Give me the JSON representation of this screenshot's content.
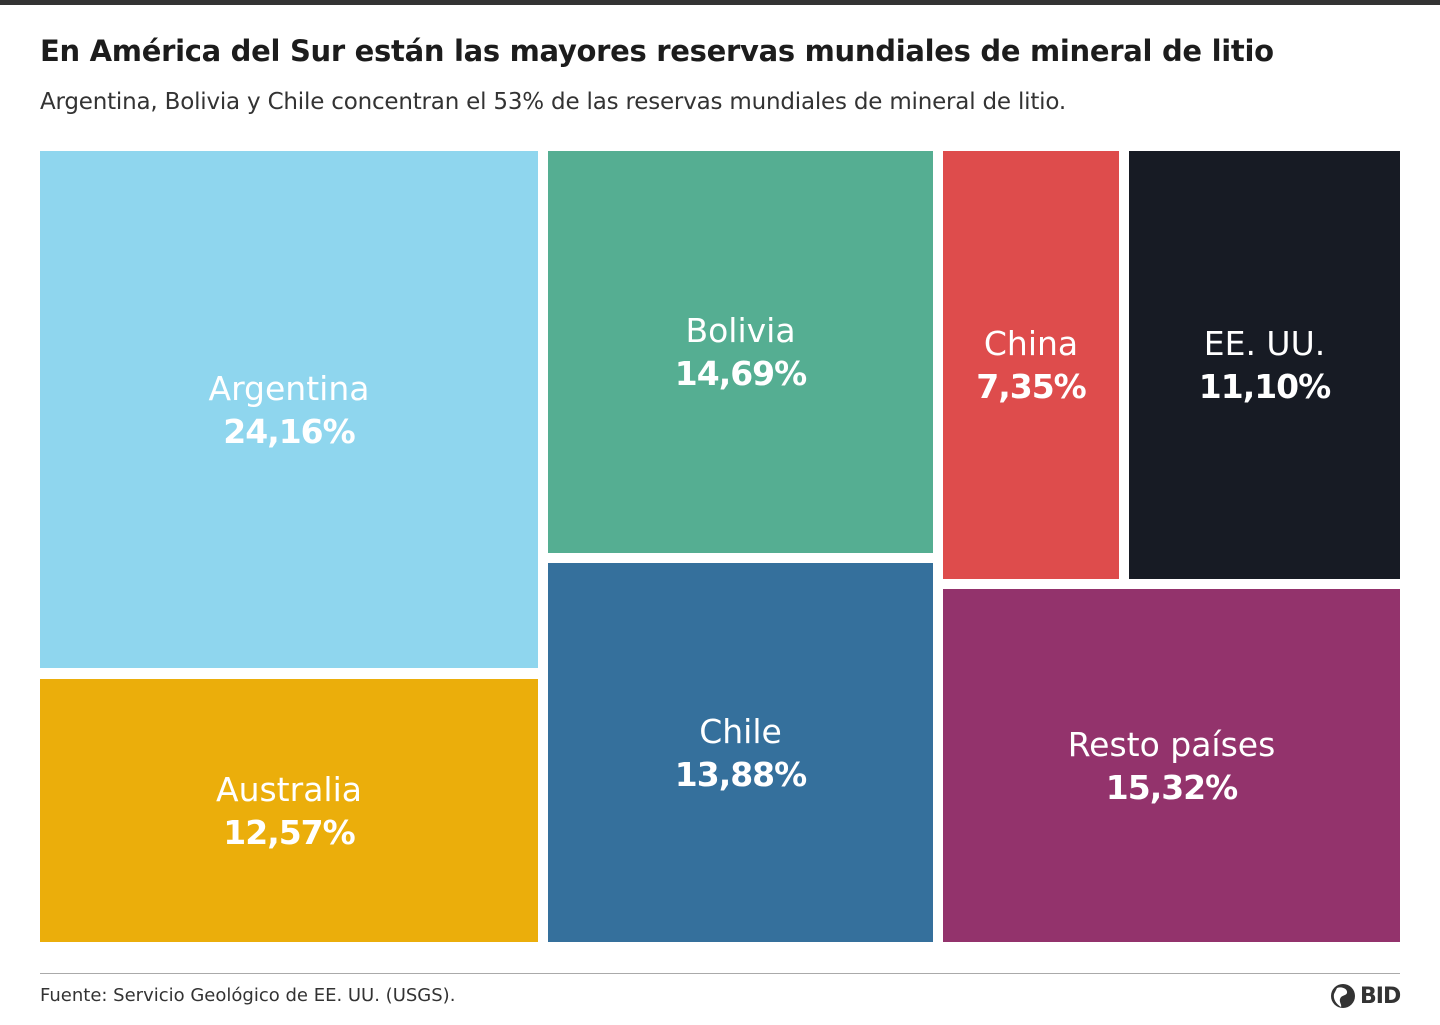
{
  "title": "En América del Sur están las mayores reservas mundiales de mineral de litio",
  "subtitle": "Argentina, Bolivia y Chile concentran el 53% de las reservas mundiales de mineral de litio.",
  "source": "Fuente: Servicio Geológico de EE. UU. (USGS).",
  "logo_text": "BID",
  "chart_data": {
    "type": "treemap",
    "unit": "%",
    "items": [
      {
        "label": "Argentina",
        "value": 24.16,
        "value_label": "24,16%",
        "color": "#8fd6ee"
      },
      {
        "label": "Australia",
        "value": 12.57,
        "value_label": "12,57%",
        "color": "#ebae0b"
      },
      {
        "label": "Bolivia",
        "value": 14.69,
        "value_label": "14,69%",
        "color": "#55ae92"
      },
      {
        "label": "Chile",
        "value": 13.88,
        "value_label": "13,88%",
        "color": "#35709c"
      },
      {
        "label": "China",
        "value": 7.35,
        "value_label": "7,35%",
        "color": "#de4c4c"
      },
      {
        "label": "EE. UU.",
        "value": 11.1,
        "value_label": "11,10%",
        "color": "#171b24"
      },
      {
        "label": "Resto países",
        "value": 15.32,
        "value_label": "15,32%",
        "color": "#93336c"
      }
    ]
  }
}
